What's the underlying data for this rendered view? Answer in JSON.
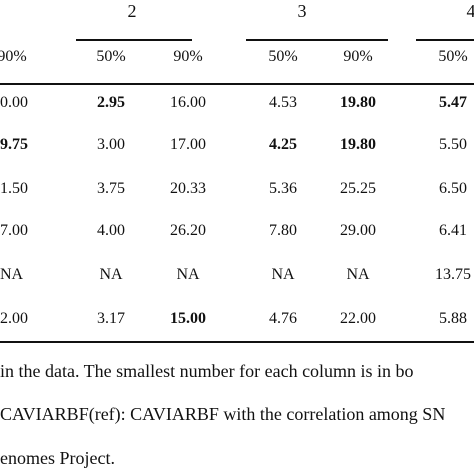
{
  "groups": [
    "2",
    "3",
    "4"
  ],
  "subheaders": [
    "90%",
    "50%",
    "90%",
    "50%",
    "90%",
    "50%"
  ],
  "rows": [
    [
      {
        "t": "0.00",
        "b": false
      },
      {
        "t": "2.95",
        "b": true
      },
      {
        "t": "16.00",
        "b": false
      },
      {
        "t": "4.53",
        "b": false
      },
      {
        "t": "19.80",
        "b": true
      },
      {
        "t": "5.47",
        "b": true
      }
    ],
    [
      {
        "t": "9.75",
        "b": true
      },
      {
        "t": "3.00",
        "b": false
      },
      {
        "t": "17.00",
        "b": false
      },
      {
        "t": "4.25",
        "b": true
      },
      {
        "t": "19.80",
        "b": true
      },
      {
        "t": "5.50",
        "b": false
      }
    ],
    [
      {
        "t": "1.50",
        "b": false
      },
      {
        "t": "3.75",
        "b": false
      },
      {
        "t": "20.33",
        "b": false
      },
      {
        "t": "5.36",
        "b": false
      },
      {
        "t": "25.25",
        "b": false
      },
      {
        "t": "6.50",
        "b": false
      }
    ],
    [
      {
        "t": "7.00",
        "b": false
      },
      {
        "t": "4.00",
        "b": false
      },
      {
        "t": "26.20",
        "b": false
      },
      {
        "t": "7.80",
        "b": false
      },
      {
        "t": "29.00",
        "b": false
      },
      {
        "t": "6.41",
        "b": false
      }
    ],
    [
      {
        "t": "NA",
        "b": false
      },
      {
        "t": "NA",
        "b": false
      },
      {
        "t": "NA",
        "b": false
      },
      {
        "t": "NA",
        "b": false
      },
      {
        "t": "NA",
        "b": false
      },
      {
        "t": "13.75",
        "b": false
      }
    ],
    [
      {
        "t": "2.00",
        "b": false
      },
      {
        "t": "3.17",
        "b": false
      },
      {
        "t": "15.00",
        "b": true
      },
      {
        "t": "4.76",
        "b": false
      },
      {
        "t": "22.00",
        "b": false
      },
      {
        "t": "5.88",
        "b": false
      }
    ]
  ],
  "notes": [
    "in the data. The smallest number for each column is in bo",
    "CAVIARBF(ref): CAVIARBF with the correlation among SN",
    "enomes Project."
  ]
}
